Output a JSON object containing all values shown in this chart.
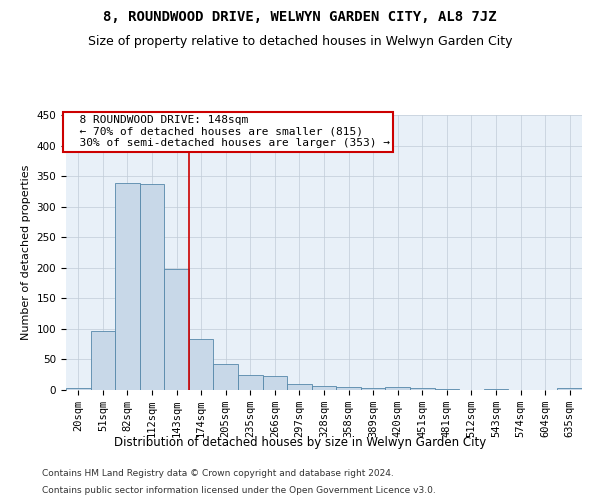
{
  "title": "8, ROUNDWOOD DRIVE, WELWYN GARDEN CITY, AL8 7JZ",
  "subtitle": "Size of property relative to detached houses in Welwyn Garden City",
  "xlabel": "Distribution of detached houses by size in Welwyn Garden City",
  "ylabel": "Number of detached properties",
  "footnote1": "Contains HM Land Registry data © Crown copyright and database right 2024.",
  "footnote2": "Contains public sector information licensed under the Open Government Licence v3.0.",
  "categories": [
    "20sqm",
    "51sqm",
    "82sqm",
    "112sqm",
    "143sqm",
    "174sqm",
    "205sqm",
    "235sqm",
    "266sqm",
    "297sqm",
    "328sqm",
    "358sqm",
    "389sqm",
    "420sqm",
    "451sqm",
    "481sqm",
    "512sqm",
    "543sqm",
    "574sqm",
    "604sqm",
    "635sqm"
  ],
  "values": [
    4,
    97,
    338,
    337,
    198,
    83,
    42,
    25,
    23,
    10,
    7,
    5,
    3,
    5,
    3,
    2,
    0,
    2,
    0,
    0,
    3
  ],
  "bar_color": "#c8d8e8",
  "bar_edge_color": "#5588aa",
  "highlight_bar_index": 4,
  "highlight_line_color": "#cc0000",
  "annotation_text": "  8 ROUNDWOOD DRIVE: 148sqm\n  ← 70% of detached houses are smaller (815)\n  30% of semi-detached houses are larger (353) →",
  "annotation_box_color": "#ffffff",
  "annotation_box_edge_color": "#cc0000",
  "ylim": [
    0,
    450
  ],
  "yticks": [
    0,
    50,
    100,
    150,
    200,
    250,
    300,
    350,
    400,
    450
  ],
  "background_color": "#ffffff",
  "plot_bg_color": "#e8f0f8",
  "grid_color": "#c0ccd8",
  "title_fontsize": 10,
  "subtitle_fontsize": 9,
  "xlabel_fontsize": 8.5,
  "ylabel_fontsize": 8,
  "tick_fontsize": 7.5,
  "annotation_fontsize": 8,
  "footnote_fontsize": 6.5
}
